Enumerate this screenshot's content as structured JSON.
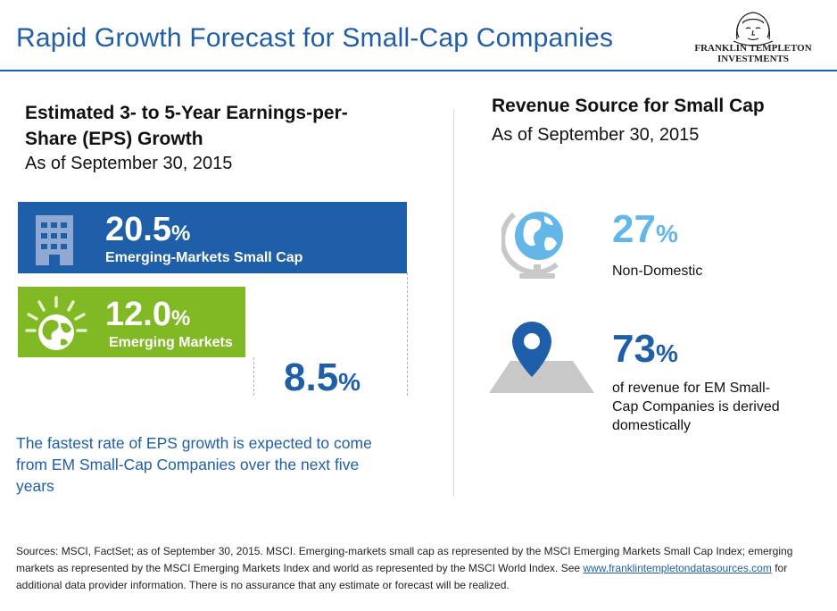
{
  "title": "Rapid Growth Forecast for Small-Cap Companies",
  "logo": {
    "line1": "FRANKLIN TEMPLETON",
    "line2": "INVESTMENTS"
  },
  "left": {
    "heading": "Estimated 3- to 5-Year Earnings-per-Share (EPS) Growth",
    "subheading": "As of September 30, 2015",
    "note": "The fastest rate of EPS growth is expected to come from EM Small-Cap Companies over the next five years"
  },
  "chart_data": {
    "type": "bar",
    "orientation": "horizontal",
    "title": "Estimated 3- to 5-Year Earnings-per-Share (EPS) Growth",
    "categories": [
      "Emerging-Markets Small Cap",
      "Emerging Markets",
      ""
    ],
    "values": [
      20.5,
      12.0,
      8.5
    ],
    "display": [
      {
        "num": "20.5",
        "pct": "%",
        "label": "Emerging-Markets Small Cap",
        "color": "#1f5ea8",
        "icon": "building-icon"
      },
      {
        "num": "12.0",
        "pct": "%",
        "label": "Emerging Markets",
        "color": "#80b923",
        "icon": "globe-icon"
      },
      {
        "num": "8.5",
        "pct": "%",
        "label": "",
        "color": "#ffffff",
        "icon": ""
      }
    ]
  },
  "right": {
    "heading": "Revenue Source for Small Cap",
    "subheading": "As of September 30, 2015",
    "stats": [
      {
        "num": "27",
        "pct": "%",
        "label": "Non-Domestic",
        "color": "#62b6e8",
        "icon": "globe-stand-icon"
      },
      {
        "num": "73",
        "pct": "%",
        "label": "of revenue for EM Small-Cap Companies is derived domestically",
        "color": "#1f5ea8",
        "icon": "map-pin-icon"
      }
    ]
  },
  "sources": {
    "text_before": "Sources: MSCI, FactSet; as of September 30, 2015. MSCI.  Emerging-markets small cap as represented by the MSCI Emerging Markets Small Cap Index; emerging markets as represented by the MSCI Emerging Markets Index and world as represented by the MSCI World Index. See ",
    "link": "www.franklintempletondatasources.com",
    "text_after": " for additional data provider information. There is no assurance that  any estimate or forecast will be realized."
  },
  "colors": {
    "brand_blue": "#1f5ea8",
    "green": "#80b923",
    "light_blue": "#62b6e8",
    "gray_icon": "#c8c8c8"
  }
}
